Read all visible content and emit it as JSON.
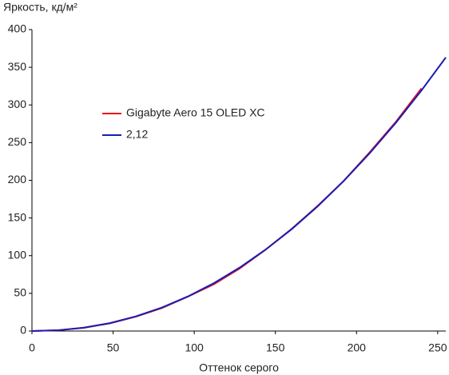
{
  "chart_data": {
    "type": "line",
    "y_label": "Яркость, кд/м²",
    "x_label": "Оттенок серого",
    "x": [
      0,
      16,
      32,
      48,
      64,
      80,
      96,
      112,
      128,
      144,
      160,
      176,
      192,
      208,
      224,
      240,
      255
    ],
    "series": [
      {
        "name": "Gigabyte Aero 15 OLED XC",
        "color": "#e8141c",
        "values": [
          0,
          1,
          4.3,
          10.2,
          19,
          30.5,
          45.5,
          62,
          83,
          108,
          135.5,
          166,
          199,
          237,
          277,
          322,
          null
        ]
      },
      {
        "name": "2,12",
        "color": "#1c1cb4",
        "values": [
          0,
          1,
          4.5,
          10.5,
          19.4,
          31.1,
          45.8,
          63.4,
          84.2,
          108.1,
          135.1,
          165.4,
          198.9,
          235.7,
          275.8,
          319.2,
          363
        ]
      }
    ],
    "xlim": [
      0,
      255
    ],
    "xticks": [
      0,
      50,
      100,
      150,
      200,
      250
    ],
    "ylim": [
      0,
      400
    ],
    "yticks": [
      0,
      50,
      100,
      150,
      200,
      250,
      300,
      350,
      400
    ],
    "grid": false,
    "legend": "upper left"
  }
}
